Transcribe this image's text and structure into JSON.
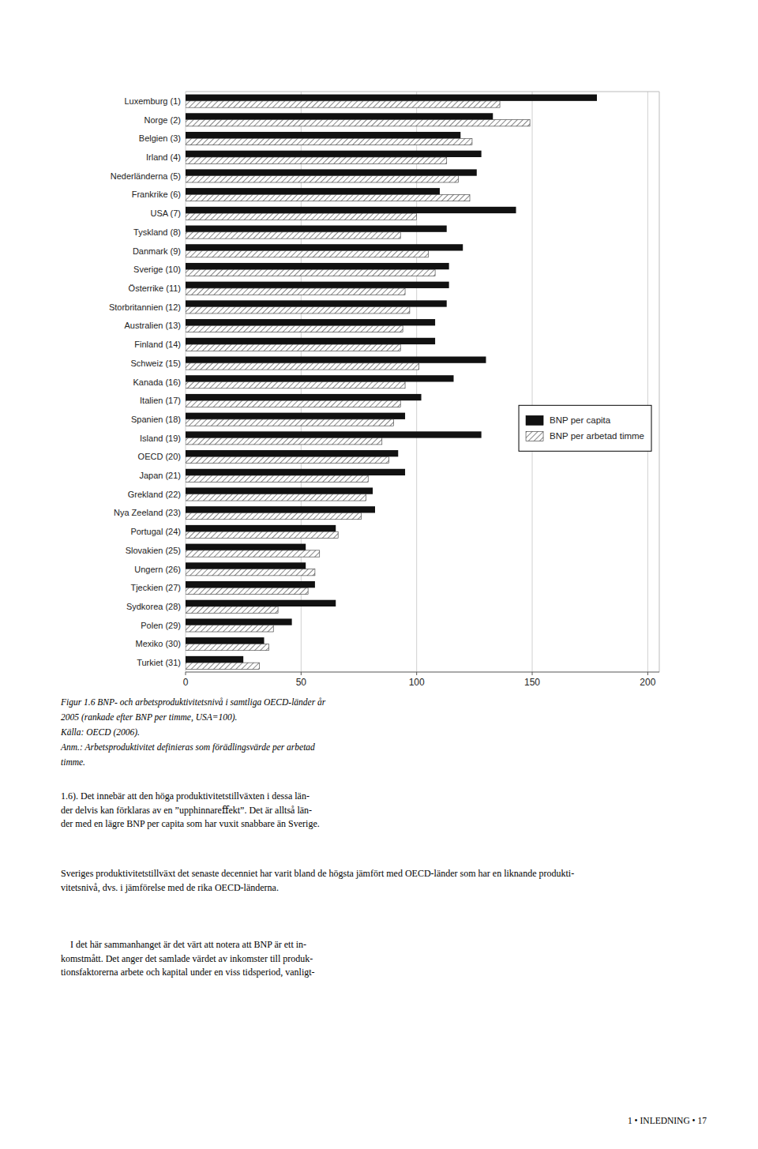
{
  "chart_data": {
    "type": "bar",
    "orientation": "horizontal",
    "categories": [
      "Luxemburg (1)",
      "Norge (2)",
      "Belgien (3)",
      "Irland (4)",
      "Nederländerna (5)",
      "Frankrike (6)",
      "USA (7)",
      "Tyskland (8)",
      "Danmark (9)",
      "Sverige (10)",
      "Österrike (11)",
      "Storbritannien (12)",
      "Australien (13)",
      "Finland (14)",
      "Schweiz (15)",
      "Kanada (16)",
      "Italien (17)",
      "Spanien (18)",
      "Island (19)",
      "OECD (20)",
      "Japan (21)",
      "Grekland (22)",
      "Nya Zeeland (23)",
      "Portugal (24)",
      "Slovakien (25)",
      "Ungern (26)",
      "Tjeckien (27)",
      "Sydkorea (28)",
      "Polen (29)",
      "Mexiko (30)",
      "Turkiet (31)"
    ],
    "series": [
      {
        "name": "BNP per capita",
        "color": "#111111",
        "values": [
          178,
          133,
          119,
          128,
          126,
          110,
          143,
          113,
          120,
          114,
          114,
          113,
          108,
          108,
          130,
          116,
          102,
          95,
          128,
          92,
          95,
          81,
          82,
          65,
          52,
          52,
          56,
          65,
          46,
          34,
          25
        ]
      },
      {
        "name": "BNP per arbetad timme",
        "color": "#333333",
        "values": [
          136,
          149,
          124,
          113,
          118,
          123,
          100,
          93,
          105,
          108,
          95,
          97,
          94,
          93,
          101,
          95,
          93,
          90,
          85,
          88,
          79,
          78,
          76,
          66,
          58,
          56,
          53,
          40,
          38,
          36,
          32
        ]
      }
    ],
    "xlim": [
      0,
      205
    ],
    "xticks": [
      0,
      50,
      100,
      150,
      200
    ],
    "grid": true,
    "legend": "center right",
    "caption": [
      "Figur 1.6 BNP- och arbetsproduktivitetsnivå i samtliga OECD-länder år",
      "2005 (rankade efter BNP per timme, USA=100).",
      "Källa: OECD (2006).",
      "Anm.: Arbetsproduktivitet definieras som förädlingsvärde per arbetad",
      "timme."
    ],
    "annotations": [
      "1.6). Det innebär att den höga produktivitetstillväxten i dessa län-\nder delvis kan förklaras av en ”upphinnareﬀekt”. Det är alltså län-\nder med en lägre BNP per capita som har vuxit snabbare än Sverige.",
      "Sveriges produktivitetstillväxt det senaste decenniet har varit bland de högsta jämfört med OECD-länder som har en liknande produkti-\nvitetsnivå, dvs. i jämförelse med de rika OECD-länderna.",
      " I det här sammanhanget är det värt att notera att BNP är ett in-\nkomstmått. Det anger det samlade värdet av inkomster till produk-\ntionsfaktorerna arbete och kapital under en viss tidsperiod, vanligt-"
    ],
    "footer": "1  •  INLEDNING  •  17"
  }
}
